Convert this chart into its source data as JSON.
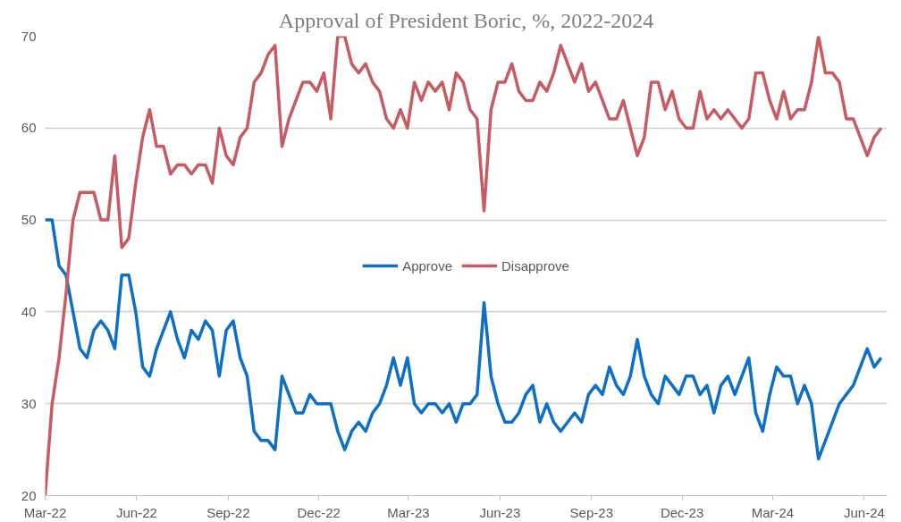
{
  "chart_data": {
    "type": "line",
    "title": "Approval of President Boric, %, 2022-2024",
    "x": [
      "2022-03-01",
      "2022-03-08",
      "2022-03-15",
      "2022-03-22",
      "2022-03-29",
      "2022-04-05",
      "2022-04-12",
      "2022-04-19",
      "2022-04-26",
      "2022-05-03",
      "2022-05-10",
      "2022-05-17",
      "2022-05-24",
      "2022-05-31",
      "2022-06-07",
      "2022-06-14",
      "2022-06-21",
      "2022-06-28",
      "2022-07-05",
      "2022-07-12",
      "2022-07-19",
      "2022-07-26",
      "2022-08-02",
      "2022-08-09",
      "2022-08-16",
      "2022-08-23",
      "2022-08-30",
      "2022-09-06",
      "2022-09-13",
      "2022-09-20",
      "2022-09-27",
      "2022-10-04",
      "2022-10-11",
      "2022-10-18",
      "2022-10-25",
      "2022-11-01",
      "2022-11-08",
      "2022-11-15",
      "2022-11-22",
      "2022-11-29",
      "2022-12-06",
      "2022-12-13",
      "2022-12-20",
      "2022-12-27",
      "2023-01-03",
      "2023-01-10",
      "2023-01-17",
      "2023-01-24",
      "2023-01-31",
      "2023-02-07",
      "2023-02-14",
      "2023-02-21",
      "2023-02-28",
      "2023-03-07",
      "2023-03-14",
      "2023-03-21",
      "2023-03-28",
      "2023-04-04",
      "2023-04-11",
      "2023-04-18",
      "2023-04-25",
      "2023-05-02",
      "2023-05-09",
      "2023-05-16",
      "2023-05-23",
      "2023-05-30",
      "2023-06-06",
      "2023-06-13",
      "2023-06-20",
      "2023-06-27",
      "2023-07-04",
      "2023-07-11",
      "2023-07-18",
      "2023-07-25",
      "2023-08-01",
      "2023-08-08",
      "2023-08-15",
      "2023-08-22",
      "2023-08-29",
      "2023-09-05",
      "2023-09-12",
      "2023-09-19",
      "2023-09-26",
      "2023-10-03",
      "2023-10-10",
      "2023-10-17",
      "2023-10-24",
      "2023-10-31",
      "2023-11-07",
      "2023-11-14",
      "2023-11-21",
      "2023-11-28",
      "2023-12-05",
      "2023-12-12",
      "2023-12-19",
      "2023-12-26",
      "2024-01-02",
      "2024-01-09",
      "2024-01-16",
      "2024-01-23",
      "2024-01-30",
      "2024-02-06",
      "2024-02-13",
      "2024-02-20",
      "2024-02-27",
      "2024-03-05",
      "2024-03-12",
      "2024-03-19",
      "2024-03-26",
      "2024-04-02",
      "2024-04-09",
      "2024-04-16",
      "2024-04-23",
      "2024-04-30",
      "2024-05-07",
      "2024-05-14",
      "2024-05-21",
      "2024-05-28",
      "2024-06-04",
      "2024-06-11",
      "2024-06-18"
    ],
    "series": [
      {
        "name": "Approve",
        "color": "#0e6fc9",
        "values": [
          50,
          50,
          45,
          44,
          40,
          36,
          35,
          38,
          39,
          38,
          36,
          44,
          44,
          40,
          34,
          33,
          36,
          38,
          40,
          37,
          35,
          38,
          37,
          39,
          38,
          33,
          38,
          39,
          35,
          33,
          27,
          26,
          26,
          25,
          33,
          31,
          29,
          29,
          31,
          30,
          30,
          30,
          27,
          25,
          27,
          28,
          27,
          29,
          30,
          32,
          35,
          32,
          35,
          30,
          29,
          30,
          30,
          29,
          30,
          28,
          30,
          30,
          31,
          41,
          33,
          30,
          28,
          28,
          29,
          31,
          32,
          28,
          30,
          28,
          27,
          28,
          29,
          28,
          31,
          32,
          31,
          34,
          32,
          31,
          33,
          37,
          33,
          31,
          30,
          33,
          32,
          31,
          33,
          33,
          31,
          32,
          29,
          32,
          33,
          31,
          33,
          35,
          29,
          27,
          31,
          34,
          33,
          33,
          30,
          32,
          30,
          24,
          26,
          28,
          30,
          31,
          32,
          34,
          36,
          34,
          35
        ]
      },
      {
        "name": "Disapprove",
        "color": "#c75b61",
        "values": [
          20,
          30,
          35,
          42,
          50,
          53,
          53,
          53,
          50,
          50,
          57,
          47,
          48,
          54,
          59,
          62,
          58,
          58,
          55,
          56,
          56,
          55,
          56,
          56,
          54,
          60,
          57,
          56,
          59,
          60,
          65,
          66,
          68,
          69,
          58,
          61,
          63,
          65,
          65,
          64,
          66,
          61,
          70,
          70,
          67,
          66,
          67,
          65,
          64,
          61,
          60,
          62,
          60,
          65,
          63,
          65,
          64,
          65,
          62,
          66,
          65,
          62,
          61,
          51,
          62,
          65,
          65,
          67,
          64,
          63,
          63,
          65,
          64,
          66,
          69,
          67,
          65,
          67,
          64,
          65,
          63,
          61,
          61,
          63,
          60,
          57,
          59,
          65,
          65,
          62,
          64,
          61,
          60,
          60,
          64,
          61,
          62,
          61,
          62,
          61,
          60,
          61,
          66,
          66,
          63,
          61,
          64,
          61,
          62,
          62,
          65,
          70,
          66,
          66,
          65,
          61,
          61,
          59,
          57,
          59,
          60
        ]
      }
    ],
    "xlim": [
      "2022-03-01",
      "2024-06-24"
    ],
    "xticks": [
      {
        "value": "2022-03-01",
        "label": "Mar-22"
      },
      {
        "value": "2022-06-01",
        "label": "Jun-22"
      },
      {
        "value": "2022-09-01",
        "label": "Sep-22"
      },
      {
        "value": "2022-12-01",
        "label": "Dec-22"
      },
      {
        "value": "2023-03-01",
        "label": "Mar-23"
      },
      {
        "value": "2023-06-01",
        "label": "Jun-23"
      },
      {
        "value": "2023-09-01",
        "label": "Sep-23"
      },
      {
        "value": "2023-12-01",
        "label": "Dec-23"
      },
      {
        "value": "2024-03-01",
        "label": "Mar-24"
      },
      {
        "value": "2024-06-01",
        "label": "Jun-24"
      }
    ],
    "ylim": [
      20,
      70
    ],
    "yticks": [
      20,
      30,
      40,
      50,
      60,
      70
    ],
    "grid": "y",
    "legend": "center",
    "line_style": "solid"
  }
}
